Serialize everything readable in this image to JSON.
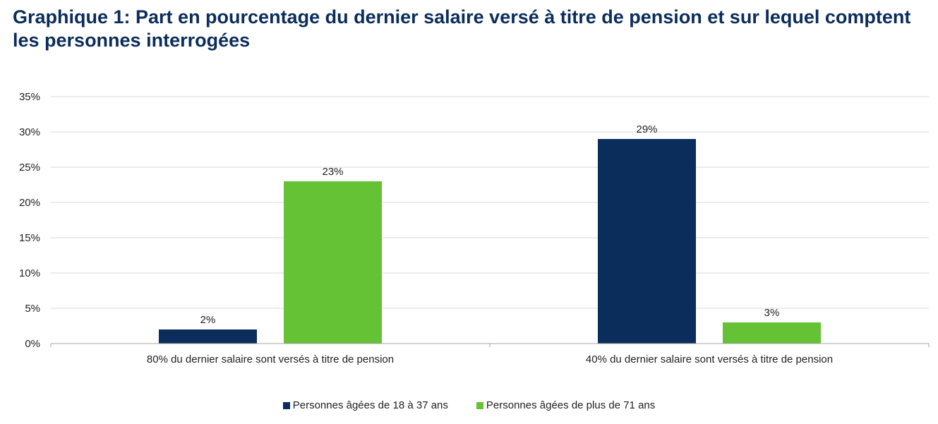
{
  "chart_data": {
    "type": "bar",
    "title": "Graphique 1: Part en pourcentage du dernier salaire versé à titre de pension et sur lequel comptent les personnes interrogées",
    "categories": [
      "80% du dernier salaire sont versés à titre de pension",
      "40% du dernier salaire sont versés à titre de pension"
    ],
    "series": [
      {
        "name": "Personnes âgées de 18 à 37 ans",
        "color": "#0b2d5b",
        "values": [
          2,
          29
        ],
        "labels": [
          "2%",
          "29%"
        ]
      },
      {
        "name": "Personnes âgées de plus de 71 ans",
        "color": "#66c235",
        "values": [
          23,
          3
        ],
        "labels": [
          "23%",
          "3%"
        ]
      }
    ],
    "ylim": [
      0,
      35
    ],
    "yticks": [
      0,
      5,
      10,
      15,
      20,
      25,
      30,
      35
    ],
    "ytick_labels": [
      "0%",
      "5%",
      "10%",
      "15%",
      "20%",
      "25%",
      "30%",
      "35%"
    ],
    "xlabel": "",
    "ylabel": "",
    "grid": true,
    "legend_position": "bottom"
  }
}
